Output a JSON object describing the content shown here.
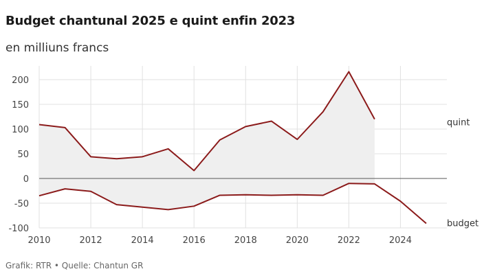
{
  "title": "Budget chantunal 2025 e quint enfin 2023",
  "subtitle": "en milliuns francs",
  "source": "Grafik: RTR • Quelle: Chantun GR",
  "colors": {
    "line": "#8b1a1a",
    "area": "#efefef",
    "grid": "#e0e0e0",
    "zero": "#555555"
  },
  "chart_data": {
    "type": "line",
    "x_ticks": [
      2010,
      2012,
      2014,
      2016,
      2018,
      2020,
      2022,
      2024
    ],
    "y_ticks": [
      200,
      150,
      100,
      50,
      0,
      -50,
      -100
    ],
    "xlim": [
      2010,
      2025.8
    ],
    "ylim": [
      -100,
      220
    ],
    "grid": true,
    "series": [
      {
        "name": "quint",
        "x": [
          2010,
          2011,
          2012,
          2013,
          2014,
          2015,
          2016,
          2017,
          2018,
          2019,
          2020,
          2021,
          2022,
          2023
        ],
        "values": [
          109,
          103,
          44,
          40,
          44,
          60,
          16,
          78,
          105,
          116,
          79,
          135,
          216,
          120
        ]
      },
      {
        "name": "budget",
        "x": [
          2010,
          2011,
          2012,
          2013,
          2014,
          2015,
          2016,
          2017,
          2018,
          2019,
          2020,
          2021,
          2022,
          2023,
          2024,
          2025
        ],
        "values": [
          -35,
          -21,
          -26,
          -53,
          -58,
          -63,
          -56,
          -34,
          -33,
          -34,
          -33,
          -34,
          -10,
          -11,
          -46,
          -91
        ]
      }
    ]
  }
}
